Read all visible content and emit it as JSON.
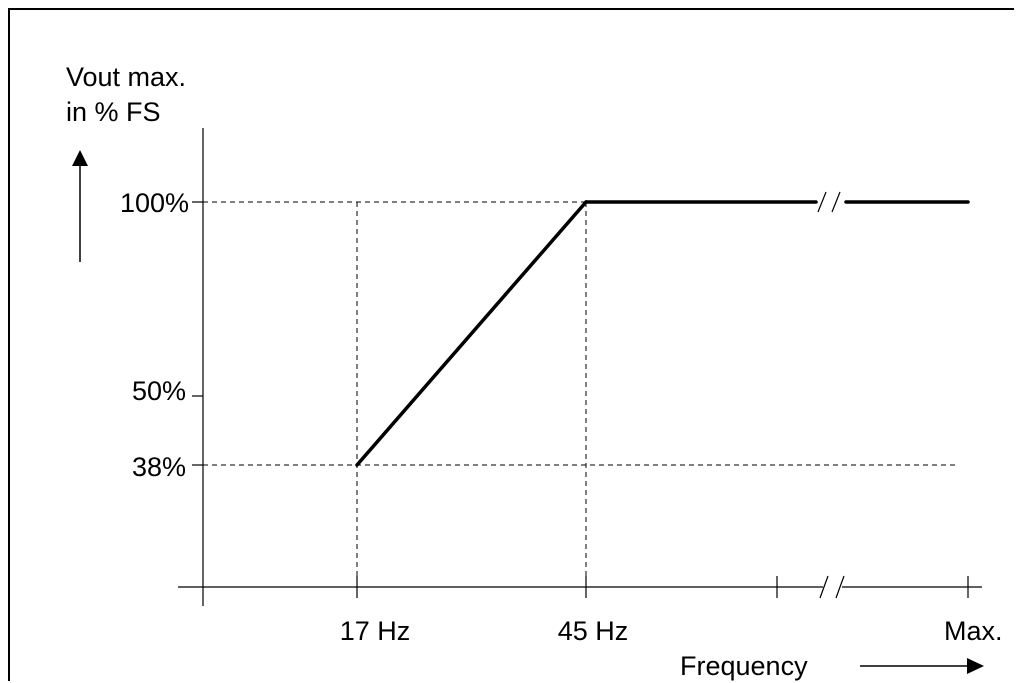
{
  "chart_data": {
    "type": "line",
    "ylabel_line1": "Vout max.",
    "ylabel_line2": "in % FS",
    "xlabel": "Frequency",
    "y_ticks": [
      "100%",
      "50%",
      "38%"
    ],
    "x_ticks": [
      "17 Hz",
      "45 Hz",
      "Max."
    ],
    "x_axis_break": "//",
    "series": [
      {
        "points": [
          {
            "x": "17 Hz",
            "y": 38
          },
          {
            "x": "45 Hz",
            "y": 100
          },
          {
            "x": "Max.",
            "y": 100
          }
        ]
      }
    ],
    "reference_lines": [
      {
        "axis": "y",
        "value": 100
      },
      {
        "axis": "y",
        "value": 38
      },
      {
        "axis": "x",
        "value": "17 Hz"
      },
      {
        "axis": "x",
        "value": "45 Hz"
      }
    ],
    "colors": {
      "line": "#000000",
      "axes": "#000000",
      "background": "#ffffff"
    }
  }
}
